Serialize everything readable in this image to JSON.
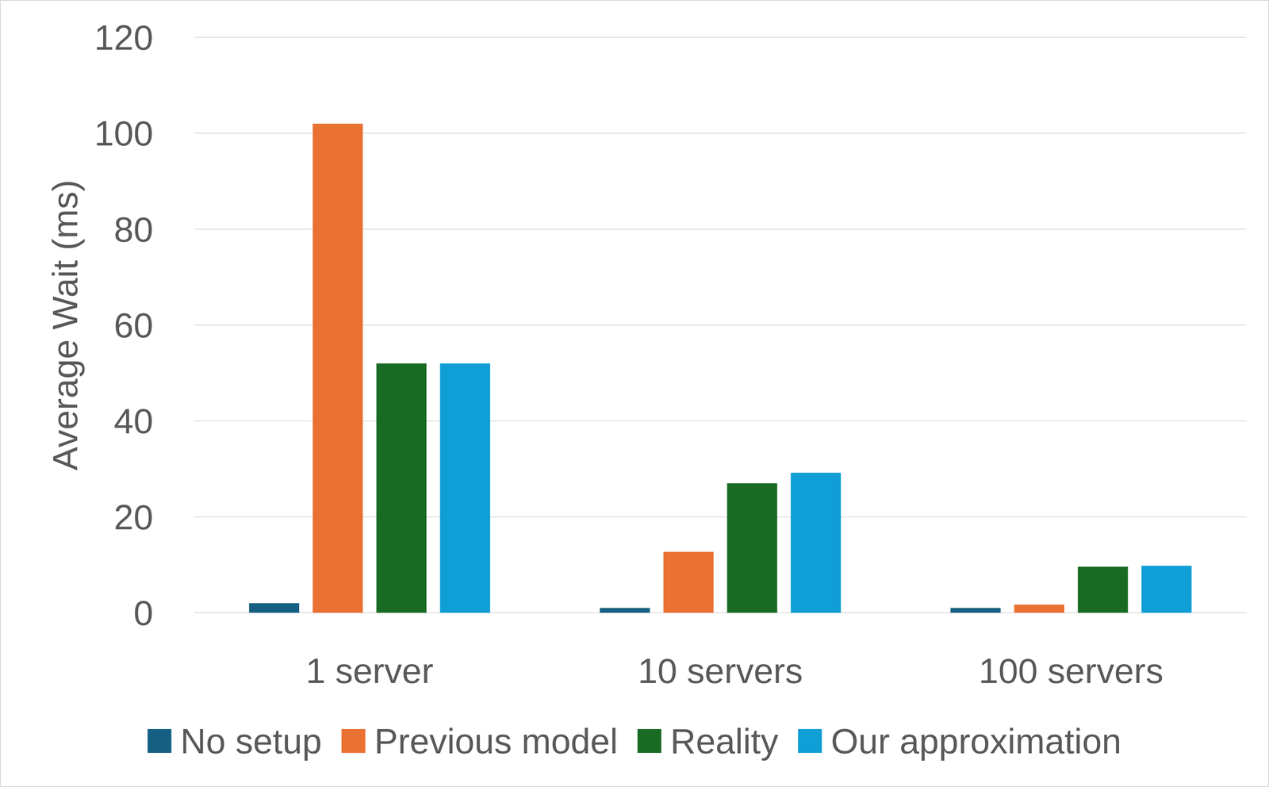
{
  "chart_data": {
    "type": "bar",
    "y_label": "Average Wait (ms)",
    "categories": [
      "1 server",
      "10 servers",
      "100 servers"
    ],
    "series": [
      {
        "name": "No setup",
        "color": "#156082",
        "values": [
          2,
          1,
          1
        ]
      },
      {
        "name": "Previous model",
        "color": "#e97132",
        "values": [
          102,
          12.7,
          1.7
        ]
      },
      {
        "name": "Reality",
        "color": "#196b24",
        "values": [
          52,
          27,
          9.6
        ]
      },
      {
        "name": "Our approximation",
        "color": "#0f9ed5",
        "values": [
          52,
          29.2,
          9.8
        ]
      }
    ],
    "ylim": [
      0,
      120
    ],
    "yticks": [
      0,
      20,
      40,
      60,
      80,
      100,
      120
    ],
    "grid": true,
    "legend": "bottom"
  }
}
